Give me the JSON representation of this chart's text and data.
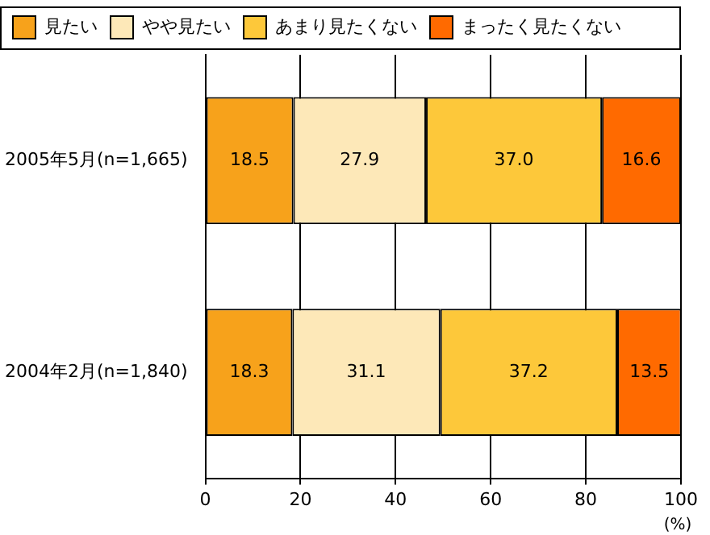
{
  "chart_data": {
    "type": "bar",
    "orientation": "horizontal",
    "stacked": true,
    "xlabel": "(%)",
    "categories": [
      "2005年5月(n=1,665)",
      "2004年2月(n=1,840)"
    ],
    "series": [
      {
        "name": "見たい",
        "color": "#f7a21b",
        "values": [
          18.5,
          18.3
        ],
        "value_labels": [
          "18.5",
          "18.3"
        ]
      },
      {
        "name": "やや見たい",
        "color": "#fde8b8",
        "values": [
          27.9,
          31.1
        ],
        "value_labels": [
          "27.9",
          "31.1"
        ]
      },
      {
        "name": "あまり見たくない",
        "color": "#fdc83a",
        "values": [
          37.0,
          37.2
        ],
        "value_labels": [
          "37.0",
          "37.2"
        ]
      },
      {
        "name": "まったく見たくない",
        "color": "#ff6a00",
        "values": [
          16.6,
          13.5
        ],
        "value_labels": [
          "16.6",
          "13.5"
        ]
      }
    ],
    "xlim": [
      0,
      100
    ],
    "xticks": [
      0,
      20,
      40,
      60,
      80,
      100
    ],
    "grid": "x",
    "legend": "top left"
  }
}
